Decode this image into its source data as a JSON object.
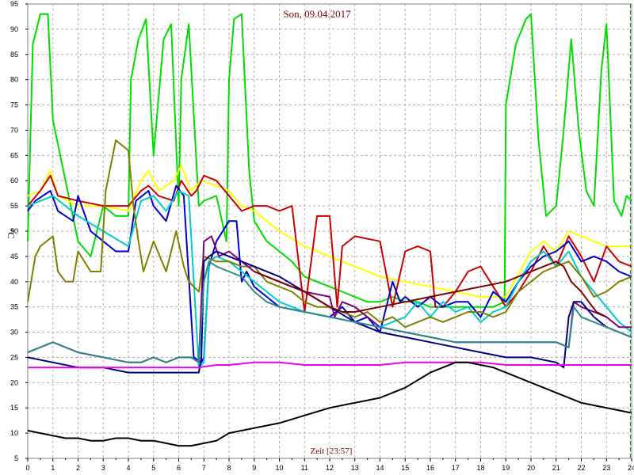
{
  "chart_data": {
    "type": "line",
    "title": "Son, 09.04.2017",
    "xlabel": "Zeit [23:57]",
    "ylabel": "°C",
    "xlim": [
      0,
      24
    ],
    "ylim": [
      5,
      95
    ],
    "grid": true,
    "x_ticks": [
      "0",
      "1",
      "2",
      "3",
      "4",
      "5",
      "6",
      "7",
      "8",
      "9",
      "10",
      "11",
      "12",
      "13",
      "14",
      "15",
      "16",
      "17",
      "18",
      "19",
      "20",
      "21",
      "22",
      "23",
      "24"
    ],
    "y_ticks": [
      "5",
      "10",
      "15",
      "20",
      "25",
      "30",
      "35",
      "40",
      "45",
      "50",
      "55",
      "60",
      "65",
      "70",
      "75",
      "80",
      "85",
      "90",
      "95"
    ],
    "marker_x": 23.95,
    "series": [
      {
        "color": "#00dd00",
        "x": [
          0,
          0.2,
          0.5,
          0.8,
          1.0,
          1.5,
          2.0,
          2.5,
          3.0,
          3.5,
          4.0,
          4.1,
          4.4,
          4.7,
          5.0,
          5.4,
          5.7,
          6.0,
          6.1,
          6.4,
          6.8,
          7.0,
          7.5,
          7.9,
          8.0,
          8.2,
          8.5,
          8.8,
          9.0,
          9.5,
          10.0,
          10.5,
          11.0,
          11.5,
          12.0,
          12.5,
          13.0,
          13.5,
          14.0,
          14.5,
          15.0,
          15.5,
          16.0,
          16.5,
          17.0,
          17.5,
          18.0,
          18.5,
          18.95,
          19.0,
          19.4,
          19.8,
          20.0,
          20.3,
          20.6,
          21.0,
          21.3,
          21.6,
          21.9,
          22.2,
          22.5,
          22.8,
          23.0,
          23.3,
          23.6,
          23.8,
          24.0
        ],
        "y": [
          48,
          87,
          93,
          93,
          72,
          60,
          48,
          45,
          55,
          53,
          53,
          80,
          88,
          92,
          65,
          88,
          91,
          55,
          80,
          91,
          55,
          56,
          57,
          48,
          80,
          92,
          93,
          62,
          52,
          48,
          46,
          44,
          41,
          40,
          39,
          38,
          37,
          36,
          36,
          37,
          36,
          36,
          35,
          35,
          35,
          35,
          35,
          35,
          36,
          75,
          87,
          92,
          93,
          68,
          53,
          55,
          70,
          88,
          70,
          58,
          55,
          82,
          91,
          56,
          53,
          57,
          56
        ]
      },
      {
        "color": "#ffff00",
        "x": [
          0,
          0.5,
          0.9,
          1.2,
          2.0,
          3.0,
          4.0,
          4.5,
          4.8,
          5.2,
          5.8,
          6.1,
          6.5,
          6.7,
          6.9,
          7.5,
          8.0,
          8.5,
          9.0,
          9.5,
          10.0,
          11.0,
          12.0,
          13.0,
          14.0,
          15.0,
          16.0,
          17.0,
          18.0,
          19.0,
          20.0,
          20.5,
          21.0,
          21.5,
          22.0,
          22.5,
          23.0,
          23.5,
          24.0
        ],
        "y": [
          57,
          58,
          62,
          57,
          55,
          55,
          54,
          60,
          62,
          58,
          60,
          63,
          58,
          59,
          60,
          59,
          58,
          55,
          54,
          52,
          50,
          47,
          45,
          43,
          41,
          40,
          39,
          38,
          37,
          37,
          46,
          48,
          46,
          50,
          49,
          48,
          47,
          47,
          47
        ]
      },
      {
        "color": "#cc0000",
        "x": [
          0,
          0.5,
          0.9,
          1.2,
          2.0,
          3.0,
          4.0,
          4.5,
          4.8,
          5.2,
          5.8,
          6.1,
          6.5,
          6.7,
          7.0,
          7.5,
          8.0,
          8.5,
          9.0,
          9.5,
          10.0,
          10.5,
          11.0,
          11.5,
          12.0,
          12.3,
          12.5,
          13.0,
          14.0,
          14.5,
          15.0,
          15.5,
          16.0,
          16.2,
          16.5,
          17.0,
          17.5,
          18.0,
          18.5,
          19.0,
          19.5,
          20.0,
          20.5,
          21.0,
          21.5,
          22.0,
          22.5,
          23.0,
          23.5,
          24.0
        ],
        "y": [
          55,
          58,
          61,
          57,
          56,
          55,
          55,
          58,
          59,
          57,
          56,
          60,
          57,
          58,
          61,
          60,
          57,
          54,
          55,
          55,
          54,
          55,
          34,
          53,
          53,
          35,
          47,
          49,
          48,
          35,
          46,
          47,
          46,
          35,
          35,
          38,
          42,
          43,
          39,
          35,
          38,
          42,
          47,
          43,
          49,
          45,
          40,
          47,
          44,
          43
        ]
      },
      {
        "color": "#0000cc",
        "x": [
          0,
          0.3,
          0.9,
          1.2,
          1.8,
          2.0,
          2.5,
          3.0,
          3.5,
          4.0,
          4.3,
          4.8,
          5.0,
          5.5,
          5.9,
          6.2,
          6.6,
          6.9,
          7.0,
          7.2,
          7.5,
          8.0,
          8.3,
          8.5,
          8.7,
          9.0,
          9.5,
          10.0,
          11.0,
          12.0,
          12.5,
          13.0,
          13.5,
          14.0,
          14.5,
          14.8,
          15.0,
          15.5,
          16.0,
          16.5,
          17.0,
          17.5,
          18.0,
          18.5,
          19.0,
          19.5,
          20.0,
          20.5,
          21.0,
          21.5,
          22.0,
          22.5,
          23.0,
          23.5,
          24.0
        ],
        "y": [
          54,
          56,
          58,
          54,
          52,
          57,
          50,
          48,
          46,
          46,
          56,
          58,
          55,
          52,
          59,
          57,
          25,
          24,
          25,
          43,
          48,
          52,
          52,
          40,
          42,
          39,
          37,
          35,
          34,
          33,
          35,
          32,
          33,
          30,
          40,
          36,
          37,
          35,
          37,
          35,
          36,
          36,
          33,
          38,
          36,
          40,
          43,
          45,
          46,
          48,
          44,
          45,
          44,
          42,
          41
        ]
      },
      {
        "color": "#00cccc",
        "x": [
          0,
          1.0,
          2.0,
          3.0,
          4.0,
          4.5,
          5.0,
          5.5,
          6.0,
          6.4,
          6.8,
          7.0,
          7.2,
          7.5,
          8.0,
          8.5,
          9.0,
          9.5,
          10.0,
          11.0,
          12.0,
          13.0,
          14.0,
          15.0,
          15.5,
          16.0,
          16.5,
          17.0,
          17.5,
          18.0,
          18.5,
          19.0,
          19.5,
          20.0,
          20.5,
          21.0,
          21.5,
          22.0,
          22.5,
          23.0,
          23.5,
          24.0
        ],
        "y": [
          55,
          57,
          53,
          50,
          47,
          56,
          57,
          54,
          58,
          57,
          23,
          24,
          44,
          45,
          44,
          42,
          40,
          38,
          36,
          34,
          33,
          32,
          31,
          33,
          36,
          33,
          36,
          34,
          35,
          32,
          34,
          35,
          40,
          44,
          46,
          43,
          46,
          41,
          38,
          35,
          32,
          30
        ]
      },
      {
        "color": "#808000",
        "x": [
          0,
          0.3,
          0.5,
          1.0,
          1.2,
          1.5,
          1.8,
          2.0,
          2.5,
          2.9,
          3.1,
          3.5,
          4.0,
          4.2,
          4.4,
          4.6,
          5.0,
          5.5,
          5.9,
          6.2,
          6.4,
          6.8,
          7.0,
          7.5,
          8.0,
          8.5,
          9.0,
          9.5,
          10.0,
          10.5,
          11.0,
          11.5,
          12.0,
          12.5,
          13.0,
          13.5,
          14.0,
          14.5,
          15.0,
          15.5,
          16.0,
          16.5,
          17.0,
          17.5,
          18.0,
          18.5,
          19.0,
          19.5,
          20.0,
          20.5,
          21.0,
          21.5,
          22.0,
          22.5,
          23.0,
          23.5,
          24.0
        ],
        "y": [
          36,
          45,
          47,
          49,
          42,
          40,
          40,
          46,
          42,
          42,
          58,
          68,
          66,
          55,
          48,
          42,
          48,
          42,
          50,
          43,
          40,
          38,
          45,
          44,
          44,
          43,
          43,
          40,
          39,
          38,
          36,
          35,
          35,
          34,
          33,
          34,
          32,
          33,
          31,
          32,
          33,
          32,
          33,
          34,
          34,
          33,
          34,
          38,
          40,
          42,
          43,
          44,
          41,
          37,
          38,
          40,
          41
        ]
      },
      {
        "color": "#800080",
        "x": [
          0,
          0.5,
          1.0,
          1.5,
          2.0,
          3.0,
          4.0,
          4.5,
          5.0,
          5.5,
          6.0,
          6.5,
          6.8,
          7.0,
          7.3,
          7.6,
          8.0,
          8.5,
          9.0,
          9.5,
          10.0,
          11.0,
          12.0,
          12.2,
          12.5,
          13.0,
          13.5,
          14.0,
          15.0,
          16.0,
          17.0,
          18.0,
          19.0,
          20.0,
          21.0,
          21.5,
          21.7,
          22.0,
          22.5,
          23.0,
          23.5,
          24.0
        ],
        "y": [
          26,
          27,
          28,
          27,
          26,
          25,
          24,
          24,
          25,
          24,
          25,
          25,
          24,
          48,
          49,
          45,
          46,
          44,
          42,
          41,
          40,
          38,
          37,
          33,
          36,
          35,
          33,
          31,
          30,
          29,
          28,
          28,
          28,
          28,
          28,
          27,
          36,
          35,
          34,
          33,
          31,
          31
        ]
      },
      {
        "color": "#000080",
        "x": [
          0,
          1.0,
          2.0,
          3.0,
          4.0,
          5.0,
          6.0,
          6.8,
          6.9,
          7.0,
          7.2,
          7.5,
          8.0,
          8.5,
          9.0,
          10.0,
          11.0,
          12.0,
          13.0,
          14.0,
          15.0,
          16.0,
          17.0,
          18.0,
          19.0,
          20.0,
          21.0,
          21.3,
          21.5,
          21.7,
          22.0,
          22.5,
          23.0,
          23.5,
          24.0
        ],
        "y": [
          25,
          24,
          23,
          23,
          22,
          22,
          22,
          22,
          25,
          44,
          45,
          46,
          45,
          44,
          43,
          41,
          38,
          35,
          32,
          30,
          29,
          28,
          27,
          26,
          25,
          25,
          24,
          23,
          33,
          36,
          36,
          33,
          31,
          30,
          29
        ]
      },
      {
        "color": "#2e8b8b",
        "x": [
          0,
          0.5,
          1.0,
          1.5,
          2.0,
          3.0,
          4.0,
          4.5,
          5.0,
          5.5,
          6.0,
          6.5,
          6.8,
          7.0,
          7.2,
          7.5,
          8.0,
          8.5,
          9.0,
          9.5,
          10.0,
          11.0,
          12.0,
          13.0,
          14.0,
          15.0,
          16.0,
          17.0,
          18.0,
          19.0,
          20.0,
          21.0,
          21.5,
          21.7,
          22.0,
          22.5,
          23.0,
          23.5,
          24.0
        ],
        "y": [
          26,
          27,
          28,
          27,
          26,
          25,
          24,
          24,
          25,
          24,
          25,
          25,
          24,
          40,
          44,
          43,
          42,
          41,
          38,
          36,
          35,
          34,
          33,
          32,
          31,
          30,
          29,
          28,
          28,
          28,
          28,
          28,
          27,
          35,
          33,
          32,
          31,
          30,
          29
        ]
      },
      {
        "color": "#800000",
        "x": [
          0,
          2,
          4,
          6,
          8,
          9.0,
          10.0,
          11.0,
          12.0,
          12.5,
          13.0,
          14.0,
          15.0,
          16.0,
          17.0,
          18.0,
          19.0,
          20.0,
          21.0,
          21.3,
          21.6,
          22.0,
          22.3,
          22.6,
          23.0
        ],
        "y": [
          null,
          null,
          null,
          null,
          null,
          42,
          40,
          38,
          35,
          34,
          34,
          35,
          36,
          37,
          38,
          39,
          40,
          42,
          44,
          43,
          40,
          38,
          36,
          34,
          33
        ]
      },
      {
        "color": "#ee00ee",
        "x": [
          0,
          2,
          4,
          6,
          6.8,
          7.5,
          8.0,
          9.0,
          10.0,
          11.0,
          12.0,
          13.0,
          14.0,
          15.0,
          16.0,
          17.0,
          18.0,
          19.0,
          20.0,
          21.0,
          22.0,
          23.0,
          24.0
        ],
        "y": [
          23,
          23,
          23,
          23,
          23,
          23.5,
          23.5,
          24,
          24,
          23.5,
          23.5,
          23.5,
          23.5,
          24,
          24,
          24,
          24,
          23.5,
          23.5,
          23.5,
          23.5,
          23.5,
          23.5
        ]
      },
      {
        "color": "#000000",
        "x": [
          0,
          0.5,
          1.0,
          1.5,
          2.0,
          2.5,
          3.0,
          3.5,
          4.0,
          4.5,
          5.0,
          5.5,
          6.0,
          6.5,
          7.0,
          7.5,
          8.0,
          9.0,
          10.0,
          11.0,
          12.0,
          13.0,
          14.0,
          15.0,
          16.0,
          16.5,
          17.0,
          17.5,
          18.0,
          18.5,
          19.0,
          20.0,
          21.0,
          22.0,
          23.0,
          23.5,
          24.0
        ],
        "y": [
          10.5,
          10,
          9.5,
          9,
          9,
          8.5,
          8.5,
          9,
          9,
          8.5,
          8.5,
          8,
          7.5,
          7.5,
          8,
          8.5,
          10,
          11,
          12,
          13.5,
          15,
          16,
          17,
          19,
          22,
          23,
          24,
          24,
          23.5,
          23,
          22,
          20,
          18,
          16,
          15,
          14.5,
          14
        ]
      }
    ]
  }
}
